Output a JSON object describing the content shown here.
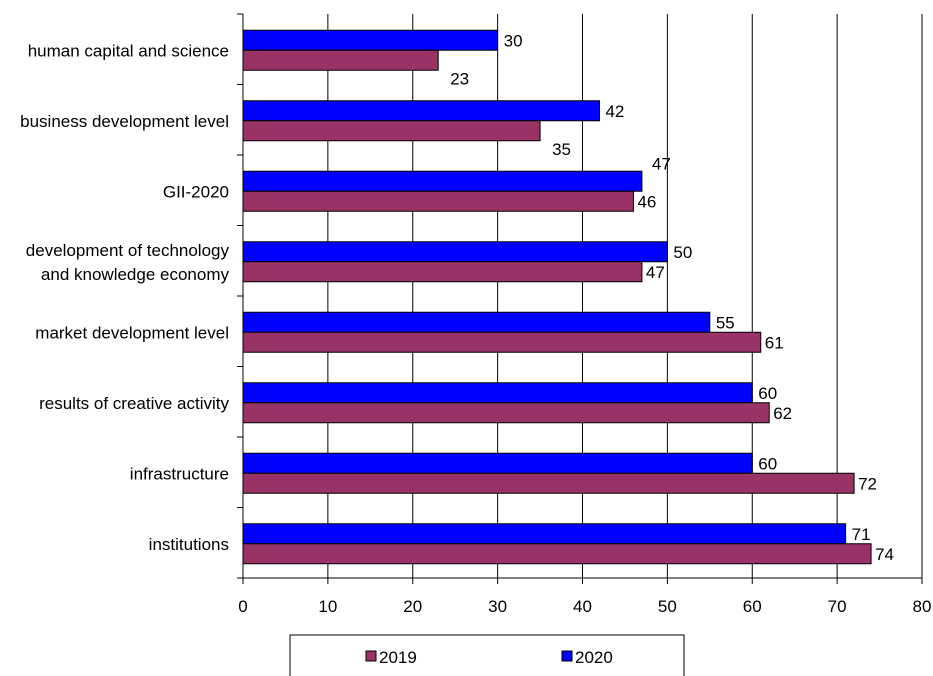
{
  "chart_data": {
    "type": "bar",
    "orientation": "horizontal",
    "categories": [
      "human capital and science",
      "business development level",
      "GII-2020",
      "development of technology and knowledge economy",
      "market development level",
      "results of creative activity",
      "infrastructure",
      "institutions"
    ],
    "category_lines": [
      [
        "human capital and science"
      ],
      [
        "business development level"
      ],
      [
        "GII-2020"
      ],
      [
        "development of technology",
        "and knowledge economy"
      ],
      [
        "market development level"
      ],
      [
        "results of creative activity"
      ],
      [
        "infrastructure"
      ],
      [
        "institutions"
      ]
    ],
    "series": [
      {
        "name": "2020",
        "color": "#0000ff",
        "values": [
          30,
          42,
          47,
          50,
          55,
          60,
          60,
          71
        ]
      },
      {
        "name": "2019",
        "color": "#993366",
        "values": [
          23,
          35,
          46,
          47,
          61,
          62,
          72,
          74
        ]
      }
    ],
    "xlim": [
      0,
      80
    ],
    "xticks": [
      0,
      10,
      20,
      30,
      40,
      50,
      60,
      70,
      80
    ],
    "grid": "vertical",
    "legend": {
      "position": "bottom",
      "order": [
        "2019",
        "2020"
      ]
    },
    "title": "",
    "xlabel": "",
    "ylabel": ""
  }
}
